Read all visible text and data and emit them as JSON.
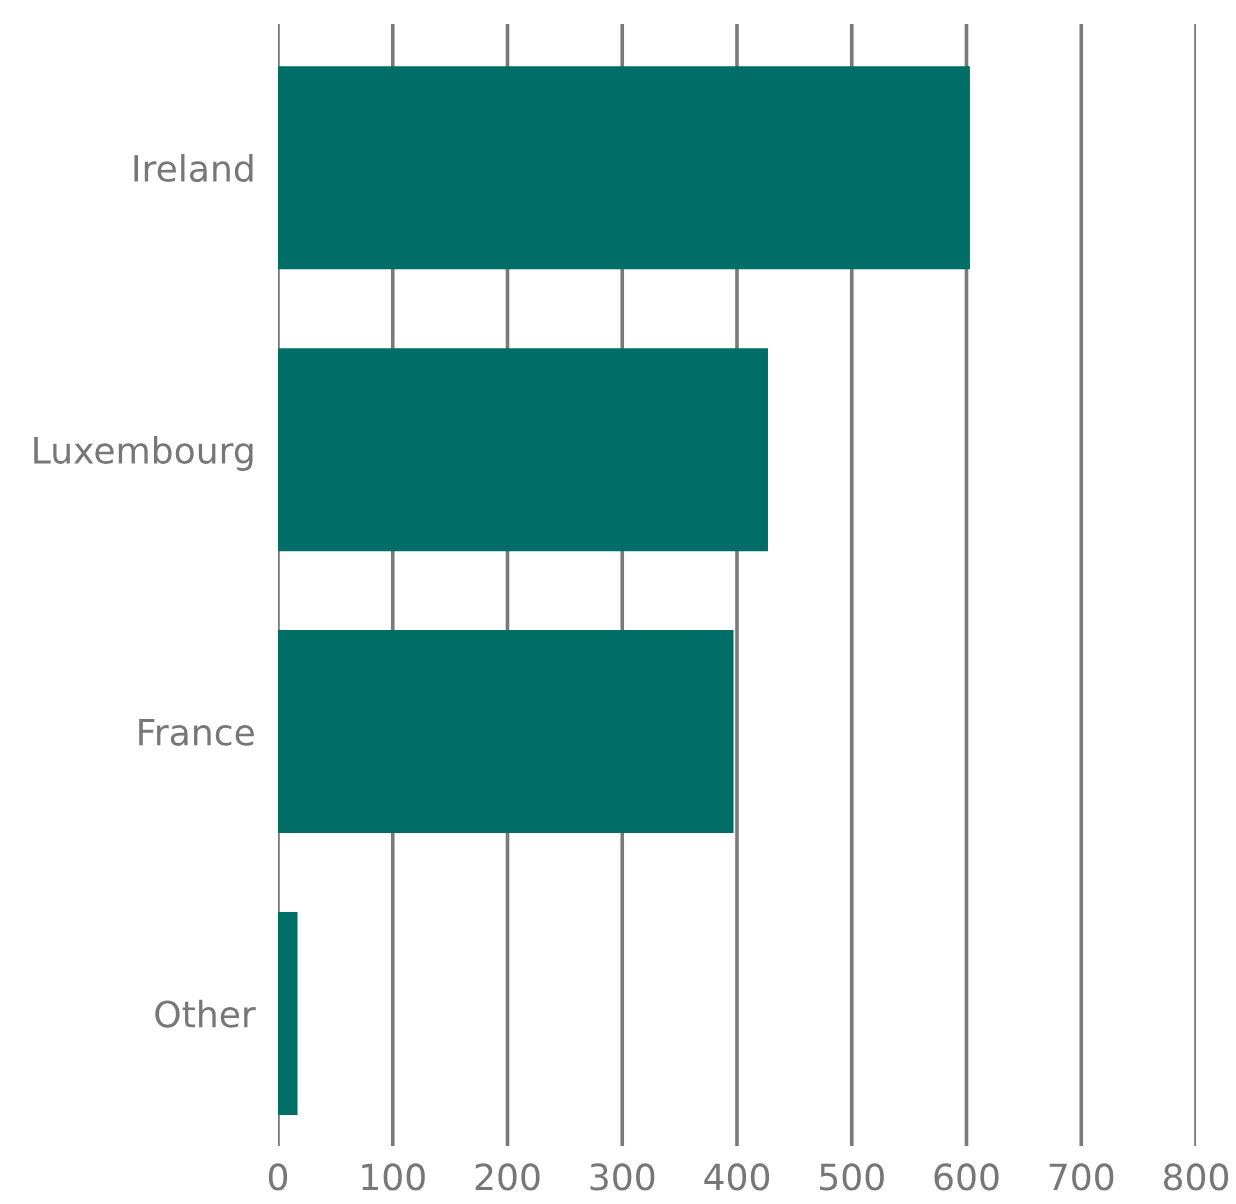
{
  "chart_data": {
    "type": "bar",
    "orientation": "horizontal",
    "categories": [
      "Ireland",
      "Luxembourg",
      "France",
      "Other"
    ],
    "values": [
      603,
      427,
      397,
      17
    ],
    "color": "#006e66",
    "xlim": [
      0,
      800
    ],
    "xticks": [
      0,
      100,
      200,
      300,
      400,
      500,
      600,
      700,
      800
    ],
    "grid": "x"
  }
}
